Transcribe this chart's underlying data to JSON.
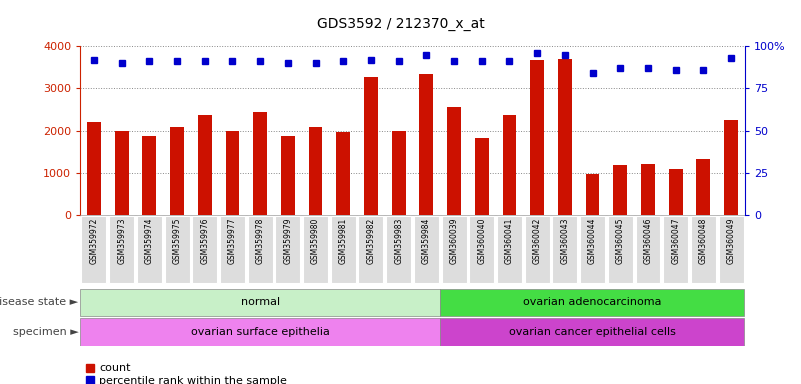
{
  "title": "GDS3592 / 212370_x_at",
  "samples": [
    "GSM359972",
    "GSM359973",
    "GSM359974",
    "GSM359975",
    "GSM359976",
    "GSM359977",
    "GSM359978",
    "GSM359979",
    "GSM359980",
    "GSM359981",
    "GSM359982",
    "GSM359983",
    "GSM359984",
    "GSM360039",
    "GSM360040",
    "GSM360041",
    "GSM360042",
    "GSM360043",
    "GSM360044",
    "GSM360045",
    "GSM360046",
    "GSM360047",
    "GSM360048",
    "GSM360049"
  ],
  "counts": [
    2200,
    2000,
    1870,
    2080,
    2380,
    2000,
    2450,
    1870,
    2080,
    1970,
    3270,
    1980,
    3340,
    2550,
    1820,
    2380,
    3680,
    3700,
    960,
    1180,
    1210,
    1100,
    1330,
    2260
  ],
  "percentile_ranks": [
    92,
    90,
    91,
    91,
    91,
    91,
    91,
    90,
    90,
    91,
    92,
    91,
    95,
    91,
    91,
    91,
    96,
    95,
    84,
    87,
    87,
    86,
    86,
    93
  ],
  "disease_groups": [
    {
      "label": "normal",
      "start": 0,
      "end": 13,
      "color": "#C8F0C8"
    },
    {
      "label": "ovarian adenocarcinoma",
      "start": 13,
      "end": 24,
      "color": "#44DD44"
    }
  ],
  "specimen_groups": [
    {
      "label": "ovarian surface epithelia",
      "start": 0,
      "end": 13,
      "color": "#EE82EE"
    },
    {
      "label": "ovarian cancer epithelial cells",
      "start": 13,
      "end": 24,
      "color": "#CC44CC"
    }
  ],
  "bar_color": "#CC1100",
  "dot_color": "#0000CC",
  "left_axis_color": "#CC2200",
  "right_axis_color": "#0000CC",
  "left_ylim": [
    0,
    4000
  ],
  "right_ylim": [
    0,
    100
  ],
  "left_yticks": [
    0,
    1000,
    2000,
    3000,
    4000
  ],
  "right_yticks": [
    0,
    25,
    50,
    75,
    100
  ],
  "right_yticklabels": [
    "0",
    "25",
    "50",
    "75",
    "100%"
  ],
  "grid_color": "#888888",
  "background_color": "#ffffff",
  "tick_bg_color": "#DDDDDD"
}
